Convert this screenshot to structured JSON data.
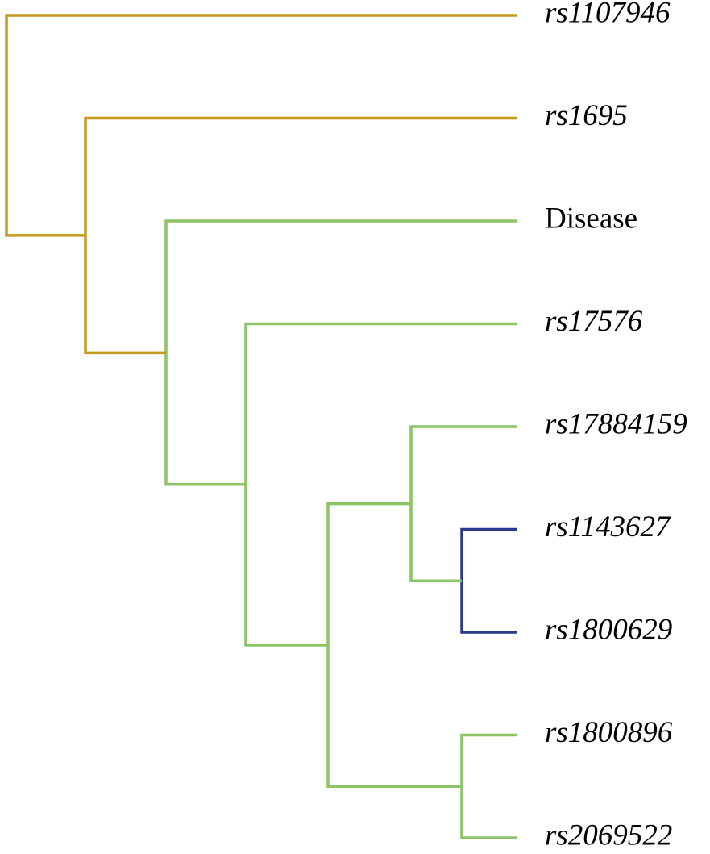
{
  "colors": {
    "gold": "#c49a1c",
    "green": "#8cc466",
    "navy": "#2b3a8c"
  },
  "leaves": [
    {
      "id": "rs1107946",
      "label": "rs1107946",
      "italic": true
    },
    {
      "id": "rs1695",
      "label": "rs1695",
      "italic": true
    },
    {
      "id": "disease",
      "label": "Disease",
      "italic": false
    },
    {
      "id": "rs17576",
      "label": "rs17576",
      "italic": true
    },
    {
      "id": "rs17884159",
      "label": "rs17884159",
      "italic": true
    },
    {
      "id": "rs1143627",
      "label": "rs1143627",
      "italic": true
    },
    {
      "id": "rs1800629",
      "label": "rs1800629",
      "italic": true
    },
    {
      "id": "rs1800896",
      "label": "rs1800896",
      "italic": true
    },
    {
      "id": "rs2069522",
      "label": "rs2069522",
      "italic": true
    }
  ],
  "clusters": [
    {
      "children": [
        "rs1143627",
        "rs1800629"
      ],
      "color": "navy",
      "level": 6
    },
    {
      "children": [
        "rs1800896",
        "rs2069522"
      ],
      "color": "green",
      "level": 6
    },
    {
      "children": [
        "rs17884159",
        "c0"
      ],
      "color": "green",
      "level": 5
    },
    {
      "children": [
        "c2",
        "c1"
      ],
      "color": "green",
      "level": 4
    },
    {
      "children": [
        "rs17576",
        "c3"
      ],
      "color": "green",
      "level": 3
    },
    {
      "children": [
        "disease",
        "c4"
      ],
      "color": "green",
      "level": 2
    },
    {
      "children": [
        "rs1695",
        "c5"
      ],
      "color": "gold",
      "level": 1
    },
    {
      "children": [
        "rs1107946",
        "c6"
      ],
      "color": "gold",
      "level": 0
    }
  ]
}
